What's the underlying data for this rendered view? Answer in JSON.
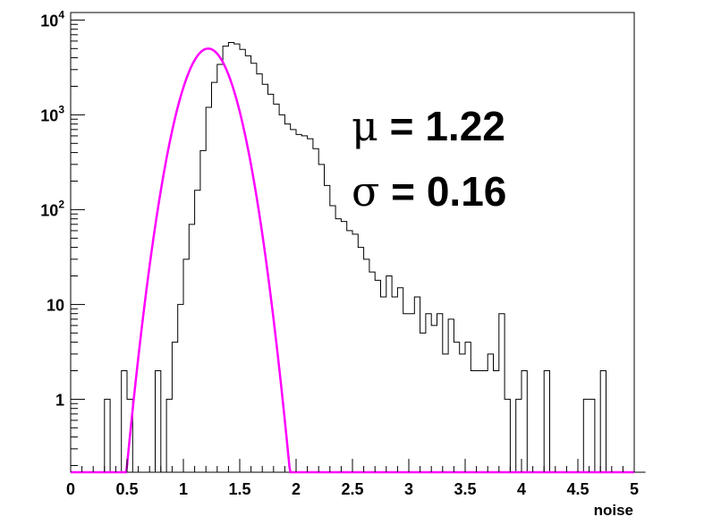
{
  "chart_data": {
    "type": "histogram",
    "title": "",
    "xlabel": "noise",
    "ylabel": "",
    "xlim": [
      0,
      5
    ],
    "ylim": [
      0.17,
      12000
    ],
    "yscale": "log",
    "grid": false,
    "x_ticks": [
      "0",
      "0.5",
      "1",
      "1.5",
      "2",
      "2.5",
      "3",
      "3.5",
      "4",
      "4.5",
      "5"
    ],
    "y_ticks": [
      {
        "value": 1,
        "base": "1",
        "exp": ""
      },
      {
        "value": 10,
        "base": "10",
        "exp": ""
      },
      {
        "value": 100,
        "base": "10",
        "exp": "2"
      },
      {
        "value": 1000,
        "base": "10",
        "exp": "3"
      },
      {
        "value": 10000,
        "base": "10",
        "exp": "4"
      }
    ],
    "bin_width": 0.05,
    "histogram": {
      "x_start": 0.0,
      "color": "#000000",
      "counts": [
        0,
        0,
        0,
        0,
        0,
        0,
        1,
        0,
        0,
        2,
        1,
        0,
        0,
        0,
        0,
        2,
        0,
        1,
        4,
        10,
        30,
        70,
        160,
        420,
        1200,
        2200,
        3400,
        5300,
        5800,
        5600,
        4900,
        4200,
        3500,
        2700,
        2100,
        1650,
        1300,
        1000,
        800,
        700,
        620,
        600,
        560,
        440,
        300,
        180,
        110,
        80,
        75,
        60,
        55,
        40,
        30,
        22,
        18,
        12,
        20,
        12,
        15,
        8,
        8,
        12,
        5,
        8,
        6,
        8,
        3,
        7,
        4,
        3,
        4,
        2,
        2,
        2,
        3,
        2,
        8,
        1,
        0,
        1,
        2,
        0,
        0,
        0,
        2,
        0,
        0,
        0,
        0,
        0,
        0,
        1,
        1,
        0,
        2,
        0,
        0,
        0,
        0,
        0,
        0,
        0
      ]
    },
    "fit": {
      "type": "gaussian",
      "color": "#ff00ff",
      "amplitude": 5000,
      "mean": 1.22,
      "sigma": 0.16,
      "x_range": [
        0,
        5
      ]
    },
    "annotations": {
      "mu_symbol": "μ",
      "mu_text": " = 1.22",
      "sigma_symbol": "σ",
      "sigma_text": " = 0.16"
    }
  }
}
